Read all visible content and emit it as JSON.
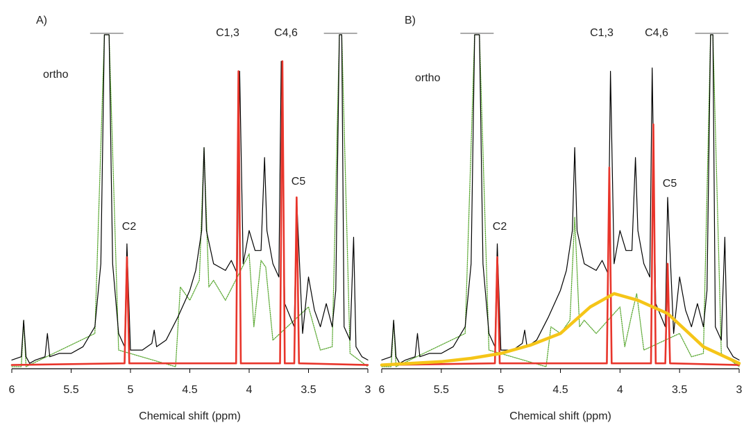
{
  "chart_data": [
    {
      "type": "line",
      "title": "A)",
      "x_label": "Chemical shift (ppm)",
      "xlim": [
        6,
        3
      ],
      "xticks": [
        6,
        5.5,
        5,
        4.5,
        4,
        3.5,
        3
      ],
      "ylim": [
        0,
        100
      ],
      "annotations": [
        "ortho",
        "C2",
        "C1,3",
        "C4,6",
        "C5"
      ],
      "series": [
        {
          "color": "#5aa832",
          "line_style": "dotted",
          "x": [
            6.0,
            5.92,
            5.9,
            5.88,
            5.3,
            5.22,
            5.18,
            5.1,
            4.62,
            4.58,
            4.5,
            4.42,
            4.38,
            4.34,
            4.3,
            4.2,
            4.0,
            3.96,
            3.9,
            3.86,
            3.8,
            3.5,
            3.4,
            3.3,
            3.24,
            3.22,
            3.15,
            3.0
          ],
          "values": [
            0,
            0,
            14,
            0,
            10,
            100,
            100,
            5,
            0,
            24,
            20,
            26,
            66,
            24,
            26,
            20,
            34,
            12,
            32,
            30,
            8,
            18,
            5,
            6,
            100,
            100,
            4,
            0
          ]
        },
        {
          "color": "#000000",
          "line_style": "thin",
          "x": [
            6.0,
            5.92,
            5.9,
            5.88,
            5.85,
            5.8,
            5.72,
            5.7,
            5.68,
            5.6,
            5.5,
            5.4,
            5.3,
            5.25,
            5.22,
            5.18,
            5.15,
            5.1,
            5.05,
            5.03,
            5.0,
            4.9,
            4.82,
            4.8,
            4.78,
            4.7,
            4.6,
            4.55,
            4.5,
            4.45,
            4.4,
            4.38,
            4.36,
            4.3,
            4.2,
            4.15,
            4.1,
            4.08,
            4.05,
            4.0,
            3.95,
            3.9,
            3.87,
            3.85,
            3.8,
            3.75,
            3.73,
            3.7,
            3.62,
            3.6,
            3.55,
            3.5,
            3.45,
            3.4,
            3.35,
            3.3,
            3.27,
            3.24,
            3.22,
            3.2,
            3.15,
            3.12,
            3.1,
            3.05,
            3.0
          ],
          "values": [
            2,
            3,
            14,
            3,
            1,
            2,
            3,
            10,
            3,
            4,
            4,
            6,
            12,
            31,
            100,
            100,
            31,
            10,
            6,
            37,
            5,
            5,
            7,
            11,
            6,
            8,
            15,
            19,
            23,
            29,
            41,
            66,
            41,
            31,
            29,
            32,
            28,
            89,
            31,
            41,
            35,
            35,
            63,
            41,
            31,
            27,
            92,
            19,
            12,
            51,
            10,
            27,
            17,
            12,
            19,
            12,
            23,
            100,
            100,
            12,
            8,
            39,
            6,
            3,
            2
          ]
        },
        {
          "color": "#e8352b",
          "line_style": "bold",
          "x": [
            6.0,
            5.05,
            5.03,
            5.01,
            4.11,
            4.09,
            4.07,
            3.74,
            3.72,
            3.7,
            3.62,
            3.6,
            3.58,
            3.0
          ],
          "values": [
            0.5,
            1,
            33,
            1,
            1,
            89,
            1,
            1,
            92,
            1,
            1,
            51,
            1,
            0.5
          ]
        }
      ]
    },
    {
      "type": "line",
      "title": "B)",
      "x_label": "Chemical shift (ppm)",
      "xlim": [
        6,
        3
      ],
      "xticks": [
        6,
        5.5,
        5,
        4.5,
        4,
        3.5,
        3
      ],
      "ylim": [
        0,
        100
      ],
      "annotations": [
        "ortho",
        "C2",
        "C1,3",
        "C4,6",
        "C5"
      ],
      "series": [
        {
          "color": "#5aa832",
          "line_style": "dotted",
          "x": [
            6.0,
            5.92,
            5.9,
            5.88,
            5.3,
            5.22,
            5.18,
            5.1,
            4.62,
            4.58,
            4.5,
            4.42,
            4.38,
            4.34,
            4.3,
            4.2,
            4.0,
            3.96,
            3.9,
            3.86,
            3.8,
            3.5,
            3.4,
            3.3,
            3.24,
            3.22,
            3.15,
            3.0
          ],
          "values": [
            0,
            0,
            14,
            0,
            10,
            100,
            100,
            5,
            0,
            12,
            10,
            14,
            45,
            12,
            14,
            10,
            18,
            6,
            16,
            22,
            5,
            10,
            3,
            4,
            100,
            100,
            4,
            0
          ]
        },
        {
          "color": "#000000",
          "line_style": "thin",
          "x": [
            6.0,
            5.92,
            5.9,
            5.88,
            5.85,
            5.8,
            5.72,
            5.7,
            5.68,
            5.6,
            5.5,
            5.4,
            5.3,
            5.25,
            5.22,
            5.18,
            5.15,
            5.1,
            5.05,
            5.03,
            5.0,
            4.9,
            4.82,
            4.8,
            4.78,
            4.7,
            4.6,
            4.55,
            4.5,
            4.45,
            4.4,
            4.38,
            4.36,
            4.3,
            4.2,
            4.15,
            4.1,
            4.08,
            4.05,
            4.0,
            3.95,
            3.9,
            3.87,
            3.85,
            3.8,
            3.75,
            3.73,
            3.7,
            3.62,
            3.6,
            3.55,
            3.5,
            3.45,
            3.4,
            3.35,
            3.3,
            3.27,
            3.24,
            3.22,
            3.2,
            3.15,
            3.12,
            3.1,
            3.05,
            3.0
          ],
          "values": [
            2,
            3,
            14,
            3,
            1,
            2,
            3,
            10,
            3,
            4,
            4,
            6,
            12,
            31,
            100,
            100,
            31,
            10,
            6,
            37,
            5,
            5,
            7,
            11,
            6,
            8,
            15,
            19,
            23,
            29,
            41,
            66,
            41,
            31,
            29,
            32,
            28,
            89,
            31,
            41,
            35,
            35,
            63,
            41,
            31,
            27,
            90,
            19,
            12,
            51,
            10,
            27,
            17,
            12,
            19,
            12,
            23,
            100,
            100,
            12,
            8,
            39,
            6,
            3,
            2
          ]
        },
        {
          "color": "#e8352b",
          "line_style": "bold",
          "x": [
            6.0,
            5.05,
            5.03,
            5.01,
            4.11,
            4.09,
            4.07,
            3.74,
            3.72,
            3.7,
            3.62,
            3.6,
            3.58,
            3.0
          ],
          "values": [
            0.5,
            1,
            33,
            1,
            1,
            60,
            1,
            1,
            73,
            1,
            1,
            31,
            1,
            0.5
          ]
        },
        {
          "color": "#f5c518",
          "line_style": "heavy",
          "x": [
            6.0,
            5.5,
            5.25,
            5.0,
            4.75,
            4.5,
            4.25,
            4.05,
            3.85,
            3.6,
            3.45,
            3.3,
            3.0
          ],
          "values": [
            0.5,
            1.5,
            2.5,
            4,
            6.5,
            10,
            18,
            22,
            20,
            16,
            11,
            6,
            1
          ]
        }
      ]
    }
  ]
}
